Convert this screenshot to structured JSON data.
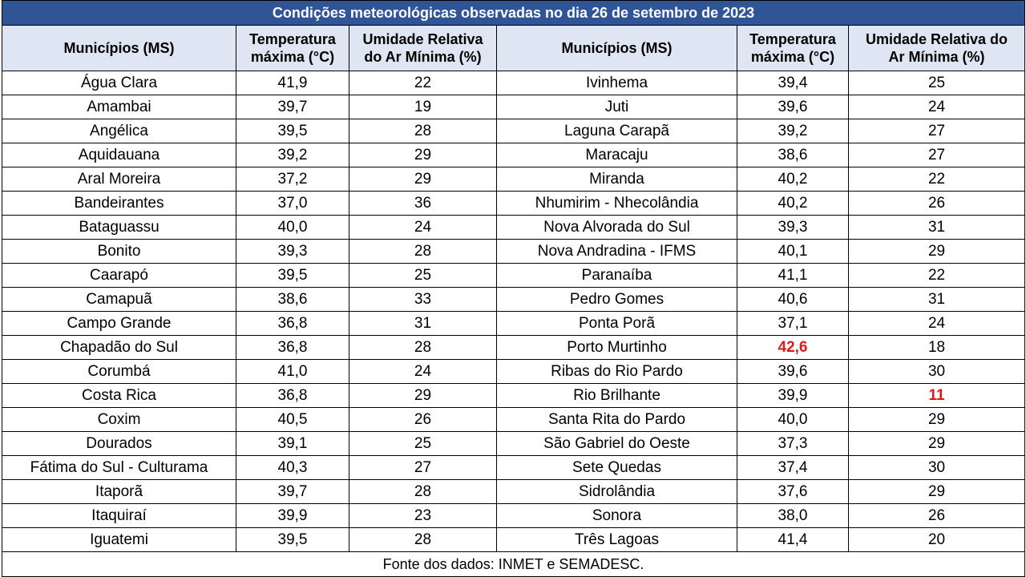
{
  "title": "Condições meteorológicas observadas no dia 26 de setembro de 2023",
  "headers": {
    "municipio": "Municípios (MS)",
    "temp_line1": "Temperatura",
    "temp_line2": "máxima (°C)",
    "umid_left_line1": "Umidade Relativa",
    "umid_left_line2": "do Ar Mínima (%)",
    "umid_right_line1": "Umidade Relativa do",
    "umid_right_line2": "Ar Mínima (%)"
  },
  "rows": [
    {
      "left": {
        "name": "Água Clara",
        "temp": "41,9",
        "umid": "22"
      },
      "right": {
        "name": "Ivinhema",
        "temp": "39,4",
        "umid": "25"
      }
    },
    {
      "left": {
        "name": "Amambai",
        "temp": "39,7",
        "umid": "19"
      },
      "right": {
        "name": "Juti",
        "temp": "39,6",
        "umid": "24"
      }
    },
    {
      "left": {
        "name": "Angélica",
        "temp": "39,5",
        "umid": "28"
      },
      "right": {
        "name": "Laguna Carapã",
        "temp": "39,2",
        "umid": "27"
      }
    },
    {
      "left": {
        "name": "Aquidauana",
        "temp": "39,2",
        "umid": "29"
      },
      "right": {
        "name": "Maracaju",
        "temp": "38,6",
        "umid": "27"
      }
    },
    {
      "left": {
        "name": "Aral Moreira",
        "temp": "37,2",
        "umid": "29"
      },
      "right": {
        "name": "Miranda",
        "temp": "40,2",
        "umid": "22"
      }
    },
    {
      "left": {
        "name": "Bandeirantes",
        "temp": "37,0",
        "umid": "36"
      },
      "right": {
        "name": "Nhumirim - Nhecolândia",
        "temp": "40,2",
        "umid": "26"
      }
    },
    {
      "left": {
        "name": "Bataguassu",
        "temp": "40,0",
        "umid": "24"
      },
      "right": {
        "name": "Nova Alvorada do Sul",
        "temp": "39,3",
        "umid": "31"
      }
    },
    {
      "left": {
        "name": "Bonito",
        "temp": "39,3",
        "umid": "28"
      },
      "right": {
        "name": "Nova Andradina - IFMS",
        "temp": "40,1",
        "umid": "29"
      }
    },
    {
      "left": {
        "name": "Caarapó",
        "temp": "39,5",
        "umid": "25"
      },
      "right": {
        "name": "Paranaíba",
        "temp": "41,1",
        "umid": "22"
      }
    },
    {
      "left": {
        "name": "Camapuã",
        "temp": "38,6",
        "umid": "33"
      },
      "right": {
        "name": "Pedro Gomes",
        "temp": "40,6",
        "umid": "31"
      }
    },
    {
      "left": {
        "name": "Campo Grande",
        "temp": "36,8",
        "umid": "31"
      },
      "right": {
        "name": "Ponta Porã",
        "temp": "37,1",
        "umid": "24"
      }
    },
    {
      "left": {
        "name": "Chapadão do Sul",
        "temp": "36,8",
        "umid": "28"
      },
      "right": {
        "name": "Porto Murtinho",
        "temp": "42,6",
        "umid": "18",
        "highlight": "temp"
      }
    },
    {
      "left": {
        "name": "Corumbá",
        "temp": "41,0",
        "umid": "24"
      },
      "right": {
        "name": "Ribas do Rio Pardo",
        "temp": "39,6",
        "umid": "30"
      }
    },
    {
      "left": {
        "name": "Costa Rica",
        "temp": "36,8",
        "umid": "29"
      },
      "right": {
        "name": "Rio Brilhante",
        "temp": "39,9",
        "umid": "11",
        "highlight": "umid"
      }
    },
    {
      "left": {
        "name": "Coxim",
        "temp": "40,5",
        "umid": "26"
      },
      "right": {
        "name": "Santa Rita do Pardo",
        "temp": "40,0",
        "umid": "29"
      }
    },
    {
      "left": {
        "name": "Dourados",
        "temp": "39,1",
        "umid": "25"
      },
      "right": {
        "name": "São Gabriel do Oeste",
        "temp": "37,3",
        "umid": "29"
      }
    },
    {
      "left": {
        "name": "Fátima do Sul - Culturama",
        "temp": "40,3",
        "umid": "27"
      },
      "right": {
        "name": "Sete Quedas",
        "temp": "37,4",
        "umid": "30"
      }
    },
    {
      "left": {
        "name": "Itaporã",
        "temp": "39,7",
        "umid": "28"
      },
      "right": {
        "name": "Sidrolândia",
        "temp": "37,6",
        "umid": "29"
      }
    },
    {
      "left": {
        "name": "Itaquiraí",
        "temp": "39,9",
        "umid": "23"
      },
      "right": {
        "name": "Sonora",
        "temp": "38,0",
        "umid": "26"
      }
    },
    {
      "left": {
        "name": "Iguatemi",
        "temp": "39,5",
        "umid": "28"
      },
      "right": {
        "name": "Três Lagoas",
        "temp": "41,4",
        "umid": "20"
      }
    }
  ],
  "source": "Fonte dos dados:  INMET e SEMADESC.",
  "colors": {
    "title_bg": "#2f5597",
    "header_bg": "#dde6f2",
    "highlight": "#e01a1a"
  }
}
